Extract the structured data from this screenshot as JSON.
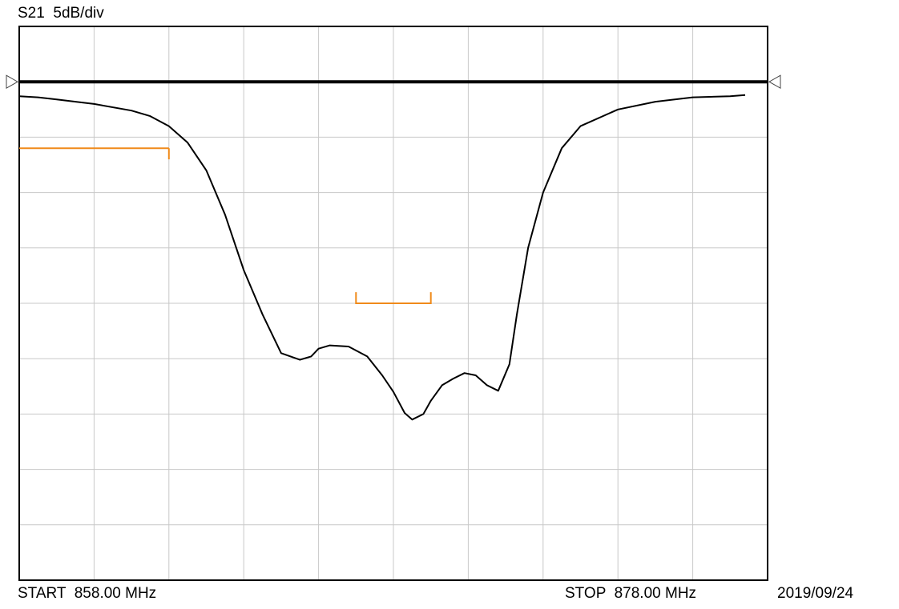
{
  "header": {
    "measurement": "S21",
    "scale": "5dB/div"
  },
  "footer": {
    "start": "START  858.00 MHz",
    "stop": "STOP  878.00 MHz",
    "date": "2019/09/24"
  },
  "colors": {
    "trace": "#000000",
    "limit": "#f08a1a",
    "grid": "#c8c8c8",
    "frame": "#000000"
  },
  "chart_data": {
    "type": "line",
    "xlabel": "",
    "ylabel": "",
    "x_unit": "MHz",
    "y_unit": "dB",
    "xlim": [
      858.0,
      878.0
    ],
    "x_divisions": 10,
    "y_divisions": 10,
    "y_per_division": 5,
    "reference_level_division": 1,
    "grid": true,
    "reference_line": {
      "y": 0
    },
    "series": [
      {
        "x": [
          858.0,
          858.5,
          859.0,
          860.0,
          861.0,
          861.5,
          862.0,
          862.5,
          863.0,
          863.5,
          864.0,
          864.5,
          865.0,
          865.5,
          865.8,
          866.0,
          866.3,
          866.8,
          867.3,
          867.7,
          868.0,
          868.3,
          868.5,
          868.8,
          869.0,
          869.3,
          869.6,
          869.9,
          870.2,
          870.5,
          870.8,
          871.1,
          871.3,
          871.6,
          872.0,
          872.5,
          873.0,
          874.0,
          875.0,
          876.0,
          877.0,
          877.4
        ],
        "y": [
          -1.3,
          -1.4,
          -1.6,
          -2.0,
          -2.6,
          -3.1,
          -4.0,
          -5.5,
          -8.0,
          -12.0,
          -17.0,
          -21.0,
          -24.5,
          -25.1,
          -24.8,
          -24.1,
          -23.8,
          -23.9,
          -24.8,
          -26.5,
          -28.0,
          -29.9,
          -30.5,
          -30.0,
          -28.8,
          -27.4,
          -26.8,
          -26.3,
          -26.5,
          -27.4,
          -27.9,
          -25.5,
          -21.0,
          -15.0,
          -10.0,
          -6.0,
          -4.0,
          -2.5,
          -1.8,
          -1.4,
          -1.3,
          -1.2
        ]
      }
    ],
    "limit_lines": [
      {
        "x": [
          858.0,
          862.0
        ],
        "y": -6.0,
        "tick_end": 862.0,
        "tick_to": -7.0
      },
      {
        "x": [
          867.0,
          869.0
        ],
        "y": -20.0,
        "tick_end": "both",
        "tick_to": -19.0
      }
    ]
  }
}
